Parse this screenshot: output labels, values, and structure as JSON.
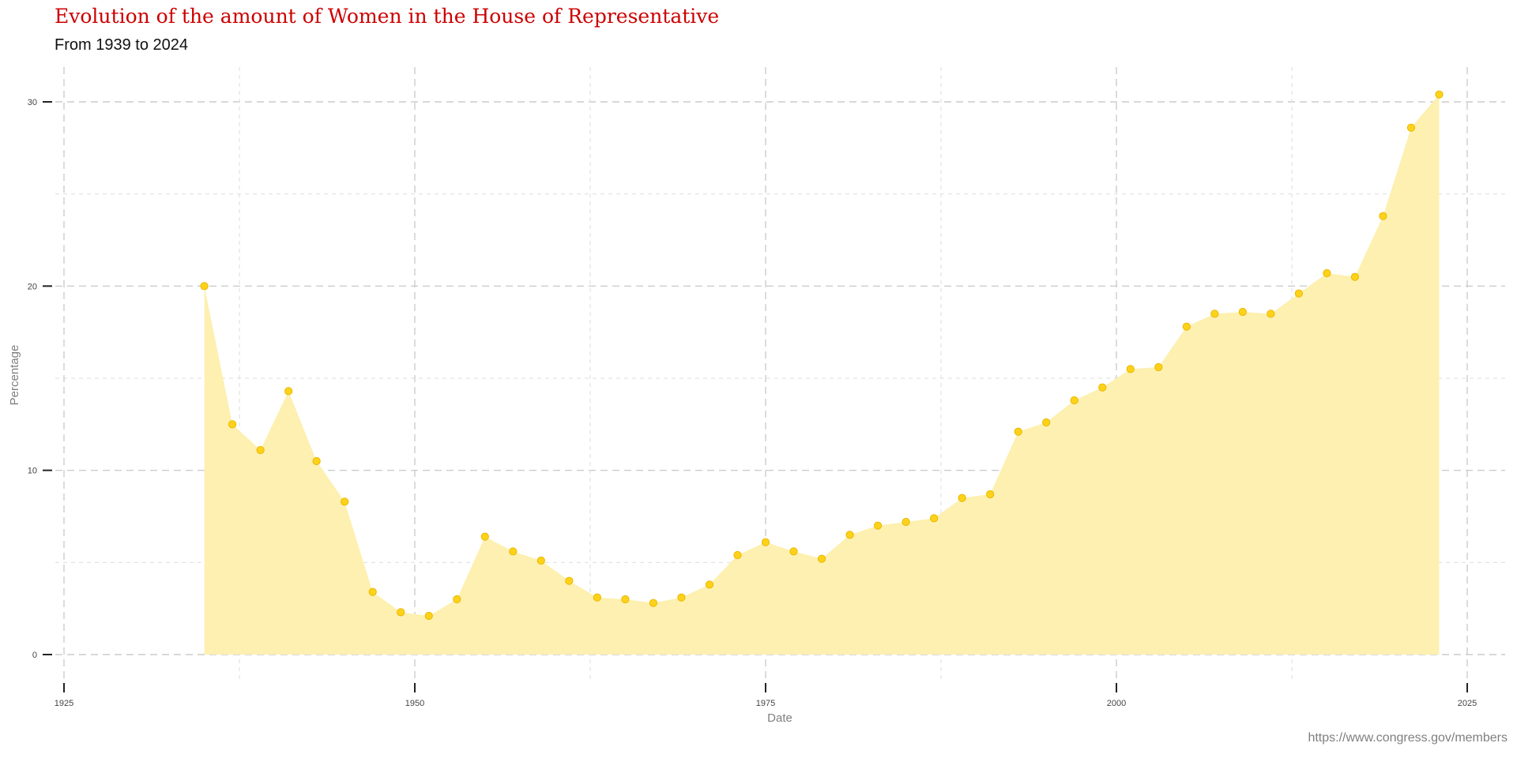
{
  "title": "Evolution of the amount of Women in the House of Representative",
  "subtitle": "From 1939 to 2024",
  "caption": "https://www.congress.gov/members",
  "colors": {
    "title": "#cc0000",
    "area_fill": "#fdf0b0",
    "point_fill": "#ffd21a",
    "point_stroke": "#e8b800",
    "grid": "#cccccc",
    "axis_text": "#444444",
    "axis_title": "#7f7f7f"
  },
  "chart_data": {
    "type": "area",
    "title": "Evolution of the amount of Women in the House of Representative",
    "subtitle": "From 1939 to 2024",
    "xlabel": "Date",
    "ylabel": "Percentage",
    "xlim": [
      1925,
      2025
    ],
    "ylim": [
      0,
      30
    ],
    "x_ticks": [
      1925,
      1950,
      1975,
      2000,
      2025
    ],
    "y_ticks": [
      0,
      10,
      20,
      30
    ],
    "grid": true,
    "series": [
      {
        "name": "Percentage",
        "x": [
          1935,
          1937,
          1939,
          1941,
          1943,
          1945,
          1947,
          1949,
          1951,
          1953,
          1955,
          1957,
          1959,
          1961,
          1963,
          1965,
          1967,
          1969,
          1971,
          1973,
          1975,
          1977,
          1979,
          1981,
          1983,
          1985,
          1987,
          1989,
          1991,
          1993,
          1995,
          1997,
          1999,
          2001,
          2003,
          2005,
          2007,
          2009,
          2011,
          2013,
          2015,
          2017,
          2019,
          2021,
          2023
        ],
        "values": [
          20.0,
          12.5,
          11.1,
          14.3,
          10.5,
          8.3,
          3.4,
          2.3,
          2.1,
          3.0,
          6.4,
          5.6,
          5.1,
          4.0,
          3.1,
          3.0,
          2.8,
          3.1,
          3.8,
          5.4,
          6.1,
          5.6,
          5.2,
          6.5,
          7.0,
          7.2,
          7.4,
          8.5,
          8.7,
          12.1,
          12.6,
          13.8,
          14.5,
          15.5,
          15.6,
          17.8,
          18.5,
          18.6,
          18.5,
          19.6,
          20.7,
          20.5,
          23.8,
          28.6,
          30.4
        ]
      }
    ]
  }
}
